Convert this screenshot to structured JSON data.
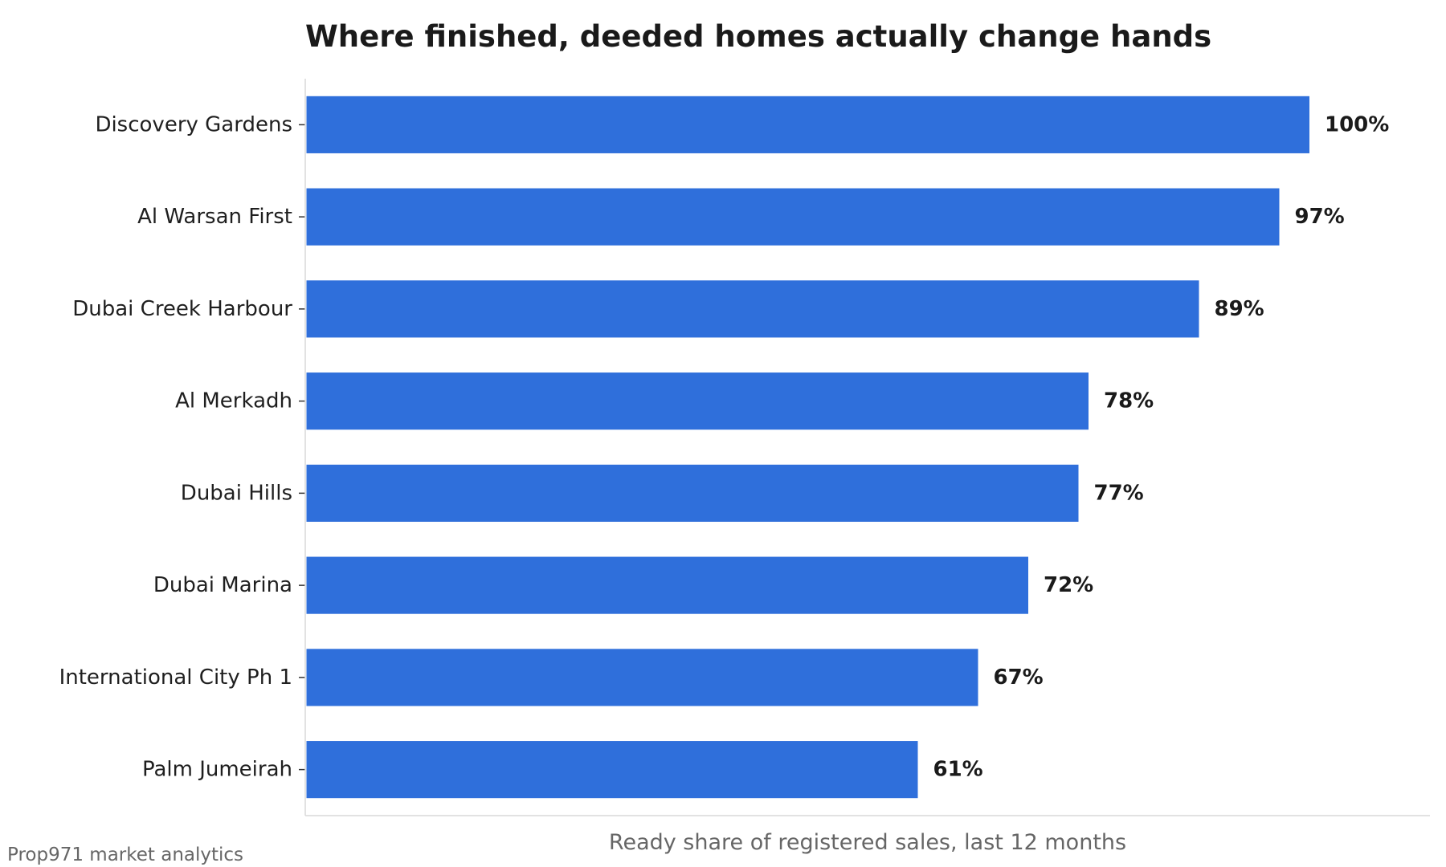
{
  "chart_data": {
    "type": "bar",
    "orientation": "horizontal",
    "title": "Where finished, deeded homes actually change hands",
    "xlabel": "Ready share of registered sales, last 12 months",
    "ylabel": "",
    "categories": [
      "Discovery Gardens",
      "Al Warsan First",
      "Dubai Creek Harbour",
      "Al Merkadh",
      "Dubai Hills",
      "Dubai Marina",
      "International City Ph 1",
      "Palm Jumeirah"
    ],
    "values": [
      100,
      97,
      89,
      78,
      77,
      72,
      67,
      61
    ],
    "value_labels": [
      "100%",
      "97%",
      "89%",
      "78%",
      "77%",
      "72%",
      "67%",
      "61%"
    ],
    "xlim": [
      0,
      112
    ],
    "x_ticks_visible": false,
    "grid": false,
    "legend": "none",
    "bar_color": "#2f6fdb",
    "source": "Prop971 market analytics"
  }
}
